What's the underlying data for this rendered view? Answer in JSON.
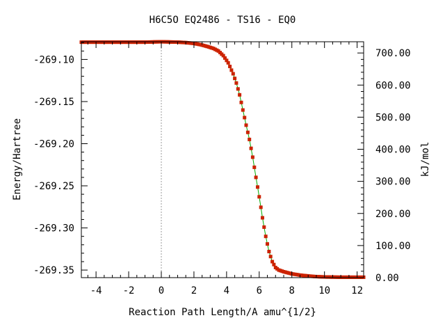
{
  "chart_data": {
    "type": "scatter",
    "title": "H6C5O   EQ2486 - TS16 - EQ0",
    "xlabel": "Reaction Path Length/A amu^{1/2}",
    "ylabel": "Energy/Hartree",
    "y2label": "kJ/mol",
    "xlim": [
      -4.9,
      12.4
    ],
    "ylim": [
      -269.359,
      -269.079
    ],
    "y2lim": [
      0,
      735
    ],
    "x_ticks": [
      "-4",
      "-2",
      "0",
      "2",
      "4",
      "6",
      "8",
      "10",
      "12"
    ],
    "x_tick_values": [
      -4,
      -2,
      0,
      2,
      4,
      6,
      8,
      10,
      12
    ],
    "y_ticks": [
      "-269.10",
      "-269.15",
      "-269.20",
      "-269.25",
      "-269.30",
      "-269.35"
    ],
    "y_tick_values": [
      -269.1,
      -269.15,
      -269.2,
      -269.25,
      -269.3,
      -269.35
    ],
    "y2_ticks": [
      "700.00",
      "600.00",
      "500.00",
      "400.00",
      "300.00",
      "200.00",
      "100.00",
      "0.00"
    ],
    "y2_tick_values": [
      700,
      600,
      500,
      400,
      300,
      200,
      100,
      0
    ],
    "ts_marker_x": 0,
    "grid": false,
    "colors": {
      "points": "#cc2200",
      "line": "#00aa00",
      "ts_line": "#999999"
    },
    "series": [
      {
        "x": [
          -4.9,
          -4.0,
          -3.0,
          -2.0,
          -1.0,
          0.0,
          1.0,
          1.5,
          2.0,
          2.4,
          2.8,
          3.2,
          3.5,
          3.8,
          4.1,
          4.4,
          4.6,
          4.8,
          5.0,
          5.2,
          5.4,
          5.6,
          5.8,
          6.0,
          6.2,
          6.4,
          6.6,
          6.8,
          7.0,
          7.2,
          7.5,
          8.0,
          8.5,
          9.0,
          9.5,
          10.0,
          11.0,
          12.4
        ],
        "y": [
          -269.0795,
          -269.0795,
          -269.0795,
          -269.0795,
          -269.0795,
          -269.079,
          -269.0795,
          -269.08,
          -269.081,
          -269.0825,
          -269.0845,
          -269.087,
          -269.09,
          -269.0955,
          -269.104,
          -269.117,
          -269.128,
          -269.142,
          -269.16,
          -269.178,
          -269.195,
          -269.216,
          -269.24,
          -269.263,
          -269.288,
          -269.31,
          -269.328,
          -269.34,
          -269.347,
          -269.35,
          -269.352,
          -269.3545,
          -269.356,
          -269.357,
          -269.3578,
          -269.3582,
          -269.3585,
          -269.3585
        ]
      }
    ]
  }
}
